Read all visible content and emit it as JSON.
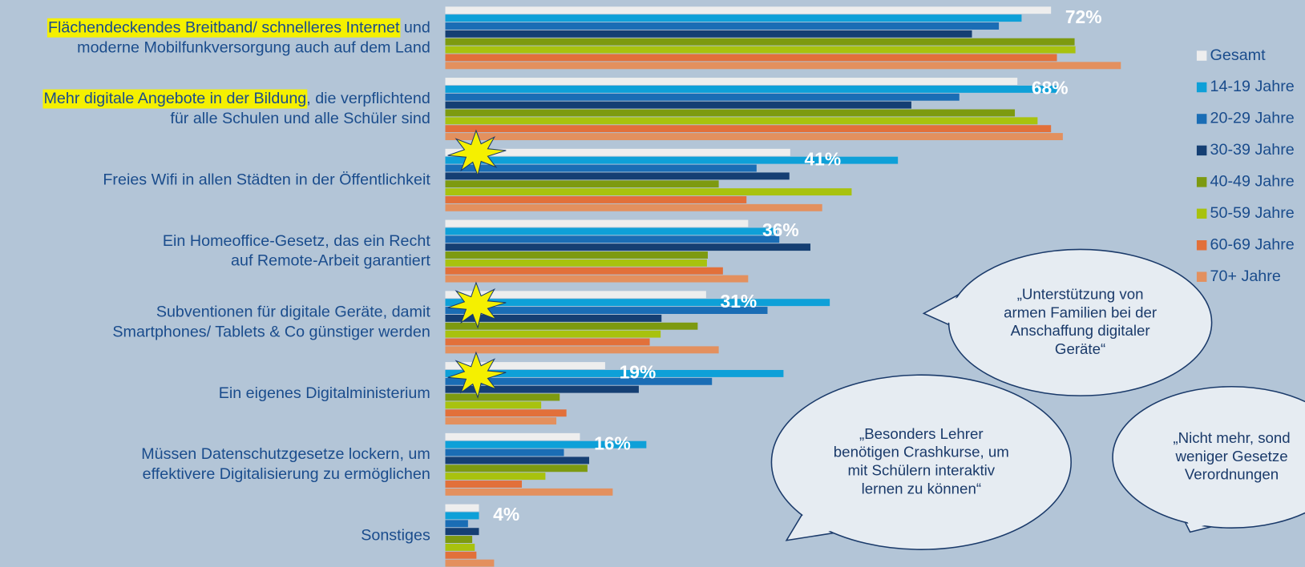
{
  "chart_data": {
    "type": "bar",
    "orientation": "horizontal",
    "categories": [
      [
        {
          "highlight": "Flächendeckendes Breitband/ schnelleres Internet",
          "text": " und"
        },
        "moderne Mobilfunkversorgung auch auf dem Land"
      ],
      [
        {
          "highlight": "Mehr digitale Angebote in der Bildung",
          "text": ", die verpflichtend"
        },
        "für alle Schulen und alle Schüler sind"
      ],
      [
        "Freies Wifi in allen Städten in der Öffentlichkeit"
      ],
      [
        "Ein Homeoffice-Gesetz, das ein Recht",
        "auf Remote-Arbeit garantiert"
      ],
      [
        "Subventionen für digitale Geräte, damit",
        "Smartphones/ Tablets & Co günstiger werden"
      ],
      [
        "Ein eigenes Digitalministerium"
      ],
      [
        "Müssen Datenschutzgesetze lockern, um",
        "effektivere Digitalisierung zu ermöglichen"
      ],
      [
        "Sonstiges"
      ]
    ],
    "series": [
      {
        "name": "Gesamt",
        "color": "#eeeeee",
        "values": [
          72,
          68,
          41,
          36,
          31,
          19,
          16,
          4
        ],
        "value_labels": [
          "72%",
          "68%",
          "41%",
          "36%",
          "31%",
          "19%",
          "16%",
          "4%"
        ]
      },
      {
        "name": "14-19 Jahre",
        "color": "#0ea0d8",
        "values": [
          68.5,
          72.7,
          53.8,
          39.4,
          45.7,
          40.2,
          23.9,
          4
        ]
      },
      {
        "name": "20-29 Jahre",
        "color": "#1a6db5",
        "values": [
          65.8,
          61.1,
          37,
          39.7,
          38.3,
          31.7,
          14.1,
          2.7
        ]
      },
      {
        "name": "30-39 Jahre",
        "color": "#153f73",
        "values": [
          62.6,
          55.4,
          40.9,
          43.4,
          25.7,
          23,
          17.1,
          4
        ]
      },
      {
        "name": "40-49 Jahre",
        "color": "#7d9a10",
        "values": [
          74.8,
          67.7,
          32.5,
          31.2,
          30,
          13.6,
          16.9,
          3.2
        ]
      },
      {
        "name": "50-59 Jahre",
        "color": "#a8c20e",
        "values": [
          74.9,
          70.4,
          48.3,
          31.1,
          25.6,
          11.4,
          11.9,
          3.5
        ]
      },
      {
        "name": "60-69 Jahre",
        "color": "#e2703a",
        "values": [
          72.7,
          72,
          35.8,
          33,
          24.3,
          14.4,
          9.1,
          3.7
        ]
      },
      {
        "name": "70+ Jahre",
        "color": "#e3905e",
        "values": [
          80.3,
          73.4,
          44.8,
          36,
          32.5,
          13.2,
          19.9,
          5.8
        ]
      }
    ],
    "xlim": [
      0,
      100
    ],
    "annotations": [
      {
        "lines": [
          "„Unterstützung von",
          "armen Familien bei der",
          "Anschaffung digitaler",
          "Geräte“"
        ]
      },
      {
        "lines": [
          "„Besonders Lehrer",
          "benötigen Crashkurse, um",
          "mit Schülern interaktiv",
          "lernen zu können“"
        ]
      },
      {
        "lines": [
          "„Nicht mehr, sond",
          "weniger Gesetze",
          "Verordnungen"
        ]
      }
    ]
  }
}
